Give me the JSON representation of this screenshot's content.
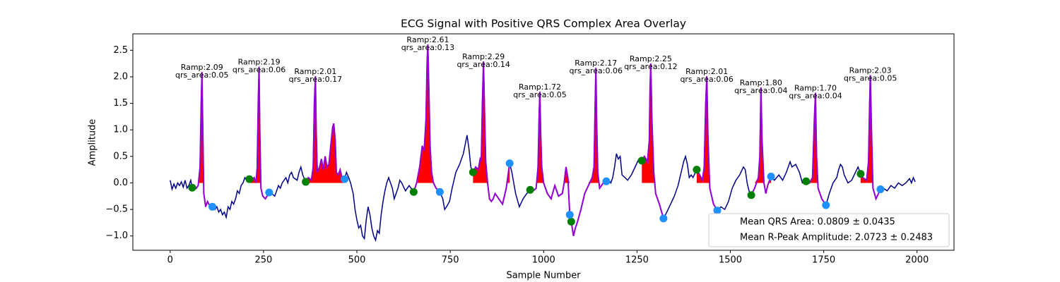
{
  "chart_data": {
    "type": "ecg",
    "title": "ECG Signal with Positive QRS Complex Area Overlay",
    "xlabel": "Sample Number",
    "ylabel": "Amplitude",
    "xlim": [
      -99.95,
      2098.95
    ],
    "ylim": [
      -1.27,
      2.81
    ],
    "xticks": [
      0,
      250,
      500,
      750,
      1000,
      1250,
      1500,
      1750,
      2000
    ],
    "yticks": [
      {
        "value": -1,
        "label": "−1.0"
      },
      {
        "value": -0.5,
        "label": "−0.5"
      },
      {
        "value": 0,
        "label": "0.0"
      },
      0.5,
      {
        "value": 1,
        "label": "1.0"
      },
      1.5,
      {
        "value": 2,
        "label": "2.0"
      },
      2.5
    ],
    "signal": {
      "color": "#00008b",
      "x": [
        0,
        5,
        10,
        15,
        20,
        25,
        30,
        35,
        40,
        45,
        50,
        55,
        59,
        65,
        70,
        75,
        80,
        83,
        85,
        87,
        90,
        95,
        100,
        105,
        113,
        120,
        125,
        130,
        135,
        140,
        145,
        150,
        155,
        160,
        165,
        170,
        175,
        180,
        185,
        190,
        195,
        200,
        205,
        212,
        218,
        225,
        230,
        233,
        236,
        238,
        240,
        243,
        248,
        255,
        265,
        272,
        280,
        285,
        290,
        295,
        300,
        305,
        310,
        315,
        320,
        325,
        330,
        340,
        345,
        350,
        355,
        363,
        370,
        378,
        383,
        386,
        389,
        391,
        394,
        400,
        405,
        410,
        415,
        420,
        425,
        430,
        435,
        438,
        442,
        445,
        450,
        455,
        460,
        467,
        472,
        478,
        483,
        490,
        495,
        500,
        505,
        510,
        515,
        520,
        525,
        530,
        535,
        540,
        545,
        550,
        555,
        560,
        565,
        570,
        575,
        580,
        585,
        590,
        595,
        600,
        605,
        610,
        615,
        620,
        630,
        640,
        645,
        652,
        660,
        668,
        675,
        680,
        685,
        688,
        690,
        693,
        696,
        700,
        705,
        712,
        722,
        730,
        735,
        740,
        748,
        755,
        765,
        775,
        785,
        795,
        800,
        805,
        811,
        818,
        825,
        830,
        833,
        836,
        839,
        842,
        845,
        850,
        855,
        860,
        865,
        870,
        880,
        890,
        900,
        909,
        915,
        925,
        935,
        945,
        955,
        964,
        972,
        980,
        985,
        988,
        990,
        992,
        995,
        1000,
        1010,
        1020,
        1030,
        1040,
        1050,
        1055,
        1060,
        1065,
        1070,
        1074,
        1080,
        1085,
        1090,
        1100,
        1110,
        1120,
        1130,
        1135,
        1138,
        1140,
        1142,
        1145,
        1150,
        1160,
        1168,
        1175,
        1180,
        1185,
        1190,
        1195,
        1200,
        1205,
        1210,
        1218,
        1225,
        1235,
        1245,
        1255,
        1263,
        1270,
        1278,
        1283,
        1285,
        1287,
        1290,
        1295,
        1300,
        1310,
        1321,
        1330,
        1340,
        1350,
        1360,
        1370,
        1375,
        1380,
        1385,
        1390,
        1395,
        1400,
        1410,
        1418,
        1425,
        1430,
        1434,
        1437,
        1440,
        1445,
        1450,
        1455,
        1465,
        1475,
        1485,
        1495,
        1505,
        1515,
        1525,
        1535,
        1540,
        1545,
        1550,
        1556,
        1565,
        1575,
        1579,
        1582,
        1585,
        1590,
        1595,
        1600,
        1609,
        1618,
        1630,
        1640,
        1650,
        1660,
        1665,
        1675,
        1685,
        1693,
        1703,
        1712,
        1720,
        1725,
        1728,
        1731,
        1735,
        1745,
        1756,
        1765,
        1775,
        1785,
        1790,
        1795,
        1800,
        1805,
        1815,
        1825,
        1835,
        1842,
        1849,
        1855,
        1865,
        1870,
        1873,
        1875,
        1878,
        1882,
        1890,
        1902,
        1910,
        1920,
        1930,
        1940,
        1950,
        1960,
        1970,
        1980,
        1985,
        1990,
        1995
      ],
      "values": [
        0.05,
        -0.12,
        -0.02,
        -0.1,
        0,
        -0.05,
        0.02,
        -0.08,
        0.05,
        -0.1,
        -0.05,
        0.05,
        -0.09,
        -0.05,
        -0.1,
        -0.05,
        0.3,
        1.5,
        2.09,
        1.2,
        -0.2,
        -0.45,
        -0.35,
        -0.42,
        -0.45,
        -0.5,
        -0.45,
        -0.55,
        -0.5,
        -0.6,
        -0.55,
        -0.65,
        -0.45,
        -0.5,
        -0.35,
        -0.4,
        -0.3,
        -0.15,
        -0.2,
        -0.05,
        0,
        0.1,
        0.05,
        0.07,
        0.05,
        0.1,
        0,
        0.3,
        1.6,
        2.19,
        1.0,
        -0.1,
        -0.25,
        -0.3,
        -0.18,
        -0.2,
        -0.25,
        -0.15,
        -0.05,
        -0.1,
        0,
        0.05,
        0.1,
        0,
        0.15,
        0.2,
        0.1,
        0.05,
        0.2,
        0.3,
        0.15,
        0.02,
        0.1,
        0.05,
        0.3,
        1.5,
        2.01,
        1.0,
        0.2,
        0.3,
        0.45,
        0.25,
        0.5,
        0.3,
        0.35,
        0.7,
        1.05,
        1.12,
        0.8,
        0.2,
        0.15,
        0.25,
        0.1,
        0.07,
        0.2,
        0.1,
        0,
        -0.2,
        -0.5,
        -0.7,
        -0.85,
        -0.8,
        -1.0,
        -1.05,
        -0.7,
        -0.45,
        -0.6,
        -0.85,
        -1.0,
        -1.08,
        -0.9,
        -0.95,
        -0.6,
        -0.35,
        -0.15,
        0,
        0.1,
        0,
        -0.1,
        -0.3,
        -0.2,
        -0.1,
        0.05,
        0,
        -0.15,
        -0.05,
        -0.1,
        -0.17,
        0,
        0.3,
        0.7,
        0.6,
        1.2,
        2.3,
        2.61,
        1.7,
        0.7,
        0.2,
        0,
        -0.1,
        -0.17,
        -0.3,
        -0.5,
        -0.45,
        -0.35,
        -0.1,
        0.2,
        0.35,
        0.55,
        0.9,
        0.65,
        0.3,
        0.2,
        0.3,
        0.25,
        0.45,
        0.4,
        1.5,
        2.29,
        1.3,
        0.4,
        0,
        -0.3,
        -0.35,
        -0.3,
        -0.2,
        -0.3,
        -0.4,
        -0.1,
        0.37,
        0.2,
        -0.2,
        -0.45,
        -0.3,
        -0.2,
        -0.13,
        -0.15,
        -0.1,
        0.3,
        1.3,
        1.72,
        1.0,
        0.3,
        0,
        -0.2,
        -0.3,
        -0.05,
        -0.25,
        -0.2,
        0,
        0.3,
        0.1,
        -0.6,
        -0.73,
        -1.0,
        -0.85,
        -0.75,
        -0.5,
        -0.2,
        -0.05,
        0.1,
        0.3,
        1.5,
        2.17,
        1.2,
        0.2,
        -0.1,
        0,
        0.03,
        0.05,
        0,
        0.1,
        0.3,
        0.55,
        0.45,
        0.5,
        0.15,
        0.1,
        0.05,
        0.15,
        0.3,
        0.45,
        0.42,
        0.5,
        0.4,
        0.8,
        1.8,
        2.25,
        1.2,
        0.2,
        -0.2,
        -0.4,
        -0.67,
        -0.55,
        -0.4,
        -0.25,
        -0.05,
        0.25,
        0.4,
        0.5,
        0.35,
        0.1,
        0.15,
        0.1,
        0.25,
        0.15,
        0.05,
        0.3,
        1.5,
        2.01,
        0.9,
        -0.1,
        -0.25,
        -0.4,
        -0.52,
        -0.45,
        -0.5,
        -0.35,
        -0.1,
        0.05,
        0.15,
        0.3,
        0.25,
        0,
        -0.15,
        -0.23,
        -0.1,
        0.1,
        0.5,
        1.8,
        0.8,
        0,
        -0.2,
        -0.05,
        0.12,
        0.05,
        0.15,
        0.05,
        0.2,
        0.4,
        0.3,
        0.35,
        0.2,
        0,
        0.03,
        0,
        0.1,
        1.2,
        1.7,
        0.5,
        -0.1,
        -0.3,
        -0.42,
        -0.2,
        0,
        0.1,
        0.25,
        0.35,
        0.3,
        0.15,
        0,
        0.05,
        0.2,
        0.3,
        0.17,
        0.1,
        0.05,
        0.4,
        1.5,
        2.03,
        1.0,
        -0.1,
        -0.3,
        -0.12,
        -0.1,
        -0.15,
        -0.05,
        -0.1,
        0,
        -0.05,
        0,
        0.08,
        0,
        0.1,
        0.02
      ]
    },
    "qrs_color": "#9400d3",
    "area_color": "#ff0000",
    "r_peaks": {
      "x": [
        85,
        238,
        389,
        690,
        839,
        990,
        1140,
        1287,
        1437,
        1582,
        1728,
        1875
      ],
      "values": [
        2.09,
        2.19,
        2.01,
        2.61,
        2.29,
        1.72,
        2.17,
        2.25,
        2.01,
        1.8,
        1.7,
        2.03
      ],
      "value_labels": [
        "Ramp:2.09",
        "Ramp:2.19",
        "Ramp:2.01",
        "Ramp:2.61",
        "Ramp:2.29",
        "Ramp:1.72",
        "Ramp:2.17",
        "Ramp:2.25",
        "Ramp:2.01",
        "Ramp:1.80",
        "Ramp:1.70",
        "Ramp:2.03"
      ],
      "qrs_area": [
        0.05,
        0.06,
        0.17,
        0.13,
        0.14,
        0.05,
        0.06,
        0.12,
        0.06,
        0.04,
        0.04,
        0.05
      ],
      "qrs_area_labels": [
        "qrs_area:0.05",
        "qrs_area:0.06",
        "qrs_area:0.17",
        "qrs_area:0.13",
        "qrs_area:0.14",
        "qrs_area:0.05",
        "qrs_area:0.06",
        "qrs_area:0.12",
        "qrs_area:0.06",
        "qrs_area:0.04",
        "qrs_area:0.04",
        "qrs_area:0.05"
      ]
    },
    "onsets": {
      "color": "#008000",
      "x": [
        59,
        212,
        363,
        652,
        811,
        964,
        1074,
        1263,
        1410,
        1556,
        1703,
        1849
      ],
      "values": [
        -0.09,
        0.07,
        0.02,
        -0.17,
        0.2,
        -0.13,
        -0.73,
        0.42,
        0.25,
        -0.23,
        0.03,
        0.17
      ]
    },
    "offsets": {
      "color": "#1e90ff",
      "x": [
        113,
        265,
        467,
        722,
        909,
        1070,
        1168,
        1321,
        1465,
        1609,
        1756,
        1902
      ],
      "values": [
        -0.45,
        -0.18,
        0.07,
        -0.17,
        0.37,
        -0.6,
        0.03,
        -0.67,
        -0.52,
        0.12,
        -0.42,
        -0.12
      ]
    },
    "legend": {
      "loc": "lower right",
      "entries": [
        "Mean QRS Area: 0.0809 ± 0.0435",
        "Mean R-Peak Amplitude: 2.0723 ± 0.2483"
      ]
    }
  }
}
